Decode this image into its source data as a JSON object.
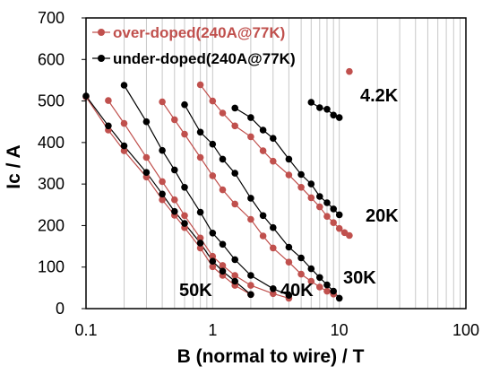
{
  "chart_data": {
    "type": "scatter",
    "xlabel": "B (normal to wire) / T",
    "ylabel": "Ic / A",
    "x_scale": "log",
    "xlim": [
      0.1,
      100
    ],
    "ylim": [
      0,
      700
    ],
    "x_ticks": [
      "0.1",
      "1",
      "10",
      "100"
    ],
    "y_ticks": [
      "0",
      "100",
      "200",
      "300",
      "400",
      "500",
      "600",
      "700"
    ],
    "grid": "vertical minor log gridlines",
    "legend_position": "top-left",
    "colors": {
      "over": "#c0504d",
      "under": "#000000"
    },
    "series": [
      {
        "name": "over-doped(240A@77K)",
        "color": "#c0504d",
        "curves": [
          {
            "label": "4.2K",
            "points": [
              [
                12,
                571
              ]
            ]
          },
          {
            "label": "20K",
            "points": [
              [
                0.8,
                539
              ],
              [
                1.0,
                500
              ],
              [
                1.2,
                471
              ],
              [
                1.5,
                440
              ],
              [
                2.0,
                414
              ],
              [
                2.5,
                380
              ],
              [
                3.0,
                355
              ],
              [
                4.0,
                322
              ],
              [
                5.0,
                292
              ],
              [
                6.0,
                267
              ],
              [
                7.0,
                245
              ],
              [
                8.0,
                222
              ],
              [
                9.0,
                207
              ],
              [
                10.0,
                193
              ],
              [
                11.0,
                183
              ],
              [
                12.0,
                176
              ]
            ]
          },
          {
            "label": "30K",
            "points": [
              [
                0.4,
                498
              ],
              [
                0.5,
                455
              ],
              [
                0.6,
                420
              ],
              [
                0.8,
                364
              ],
              [
                1.0,
                320
              ],
              [
                1.2,
                286
              ],
              [
                1.5,
                252
              ],
              [
                2.0,
                215
              ],
              [
                2.5,
                175
              ],
              [
                3.0,
                146
              ],
              [
                4.0,
                112
              ],
              [
                5.0,
                83
              ],
              [
                6.0,
                66
              ],
              [
                7.0,
                52
              ],
              [
                8.0,
                42
              ],
              [
                9.0,
                35
              ]
            ]
          },
          {
            "label": "40K",
            "points": [
              [
                0.15,
                501
              ],
              [
                0.2,
                446
              ],
              [
                0.3,
                364
              ],
              [
                0.4,
                306
              ],
              [
                0.5,
                262
              ],
              [
                0.6,
                224
              ],
              [
                0.8,
                170
              ],
              [
                1.0,
                126
              ],
              [
                1.2,
                104
              ],
              [
                1.5,
                80
              ],
              [
                2.0,
                56
              ],
              [
                3.0,
                36
              ],
              [
                4.0,
                25
              ]
            ]
          },
          {
            "label": "50K",
            "points": [
              [
                0.1,
                510
              ],
              [
                0.15,
                430
              ],
              [
                0.2,
                380
              ],
              [
                0.3,
                317
              ],
              [
                0.4,
                262
              ],
              [
                0.5,
                225
              ],
              [
                0.6,
                195
              ],
              [
                0.8,
                146
              ],
              [
                1.0,
                101
              ],
              [
                1.2,
                80
              ],
              [
                1.5,
                56
              ],
              [
                2.0,
                34
              ]
            ]
          }
        ]
      },
      {
        "name": "under-doped(240A@77K)",
        "color": "#000000",
        "curves": [
          {
            "label": "4.2K",
            "points": [
              [
                6,
                497
              ],
              [
                7,
                484
              ],
              [
                8,
                480
              ],
              [
                9,
                466
              ],
              [
                10,
                460
              ]
            ]
          },
          {
            "label": "20K",
            "points": [
              [
                1.5,
                483
              ],
              [
                2.0,
                460
              ],
              [
                2.5,
                430
              ],
              [
                3.0,
                410
              ],
              [
                4.0,
                360
              ],
              [
                5.0,
                323
              ],
              [
                6.0,
                300
              ],
              [
                7.0,
                270
              ],
              [
                8.0,
                255
              ],
              [
                9.0,
                240
              ],
              [
                10.0,
                226
              ]
            ]
          },
          {
            "label": "30K",
            "points": [
              [
                0.6,
                491
              ],
              [
                0.8,
                425
              ],
              [
                1.0,
                396
              ],
              [
                1.2,
                360
              ],
              [
                1.5,
                326
              ],
              [
                2.0,
                266
              ],
              [
                2.5,
                224
              ],
              [
                3.0,
                195
              ],
              [
                4.0,
                148
              ],
              [
                5.0,
                122
              ],
              [
                6.0,
                96
              ],
              [
                7.0,
                75
              ],
              [
                8.0,
                57
              ],
              [
                9.0,
                42
              ],
              [
                10.0,
                25
              ]
            ]
          },
          {
            "label": "40K",
            "points": [
              [
                0.2,
                538
              ],
              [
                0.3,
                450
              ],
              [
                0.4,
                381
              ],
              [
                0.5,
                334
              ],
              [
                0.6,
                292
              ],
              [
                0.8,
                232
              ],
              [
                1.0,
                182
              ],
              [
                1.2,
                155
              ],
              [
                1.5,
                118
              ],
              [
                2.0,
                80
              ],
              [
                3.0,
                48
              ],
              [
                4.0,
                32
              ]
            ]
          },
          {
            "label": "50K",
            "points": [
              [
                0.1,
                512
              ],
              [
                0.15,
                440
              ],
              [
                0.2,
                392
              ],
              [
                0.3,
                328
              ],
              [
                0.4,
                276
              ],
              [
                0.5,
                234
              ],
              [
                0.6,
                205
              ],
              [
                0.8,
                158
              ],
              [
                1.0,
                114
              ],
              [
                1.2,
                90
              ],
              [
                1.5,
                66
              ],
              [
                2.0,
                34
              ]
            ]
          }
        ]
      }
    ],
    "annotations": [
      "4.2K",
      "20K",
      "30K",
      "40K",
      "50K"
    ]
  }
}
